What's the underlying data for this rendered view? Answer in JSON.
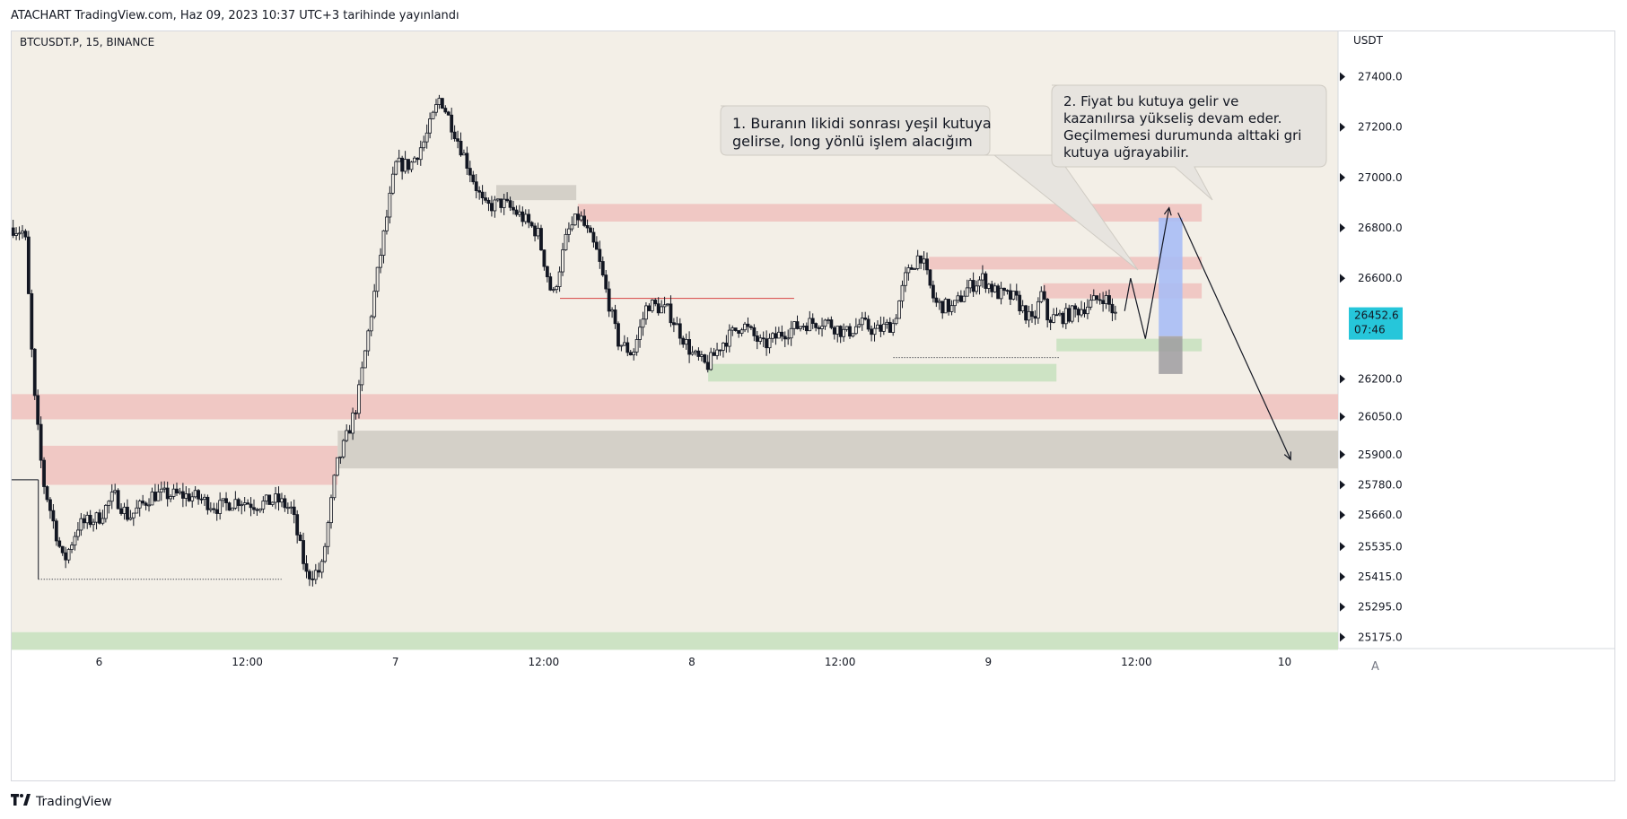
{
  "header": {
    "publication": "ATACHART TradingView.com, Haz 09, 2023 10:37 UTC+3 tarihinde yayınlandı"
  },
  "symbol_label": "BTCUSDT.P, 15, BINANCE",
  "currency": "USDT",
  "current_price": {
    "price": "26452.6",
    "countdown": "07:46"
  },
  "auto_scale_label": "A",
  "footer": {
    "brand": "TradingView"
  },
  "colors": {
    "background": "#f3efe7",
    "bull_candle": "#131722",
    "bear_candle": "#131722",
    "supply_zone": "#f0c8c4",
    "demand_zone": "#cde3c4",
    "neutral_zone": "#d4d0c8",
    "price_badge": "#26c6da",
    "arrow_target": "#a9bdf5"
  },
  "annotations": [
    {
      "id": "note-1",
      "lines": [
        "1. Buranın likidi sonrası yeşil kutuya",
        "gelirse, long yönlü işlem alacığım"
      ]
    },
    {
      "id": "note-2",
      "lines": [
        "2. Fiyat bu kutuya gelir ve",
        "kazanılırsa yükseliş devam eder.",
        "Geçilmemesi durumunda alttaki gri",
        "kutuya uğrayabilir."
      ]
    }
  ],
  "chart_data": {
    "type": "candlestick",
    "title": "BTCUSDT.P, 15, BINANCE",
    "y_axis_label": "USDT",
    "x_ticks": [
      {
        "label": "6",
        "day": 6.0
      },
      {
        "label": "12:00",
        "day": 6.5
      },
      {
        "label": "7",
        "day": 7.0
      },
      {
        "label": "12:00",
        "day": 7.5
      },
      {
        "label": "8",
        "day": 8.0
      },
      {
        "label": "12:00",
        "day": 8.5
      },
      {
        "label": "9",
        "day": 9.0
      },
      {
        "label": "12:00",
        "day": 9.5
      },
      {
        "label": "10",
        "day": 10.0
      }
    ],
    "y_ticks": [
      27400.0,
      27200.0,
      27000.0,
      26800.0,
      26600.0,
      26200.0,
      26050.0,
      25900.0,
      25780.0,
      25660.0,
      25535.0,
      25415.0,
      25295.0,
      25175.0
    ],
    "y_range": [
      25130,
      27580
    ],
    "x_range_days": [
      5.705,
      10.18
    ],
    "last_price": 26452.6,
    "price_path": [
      {
        "day": 5.71,
        "price": 26800
      },
      {
        "day": 5.75,
        "price": 26780
      },
      {
        "day": 5.78,
        "price": 26150
      },
      {
        "day": 5.81,
        "price": 25800
      },
      {
        "day": 5.88,
        "price": 25470
      },
      {
        "day": 5.93,
        "price": 25620
      },
      {
        "day": 6.0,
        "price": 25650
      },
      {
        "day": 6.05,
        "price": 25740
      },
      {
        "day": 6.1,
        "price": 25650
      },
      {
        "day": 6.18,
        "price": 25740
      },
      {
        "day": 6.27,
        "price": 25740
      },
      {
        "day": 6.33,
        "price": 25730
      },
      {
        "day": 6.4,
        "price": 25690
      },
      {
        "day": 6.47,
        "price": 25720
      },
      {
        "day": 6.53,
        "price": 25700
      },
      {
        "day": 6.6,
        "price": 25720
      },
      {
        "day": 6.65,
        "price": 25680
      },
      {
        "day": 6.7,
        "price": 25420
      },
      {
        "day": 6.75,
        "price": 25440
      },
      {
        "day": 6.8,
        "price": 25850
      },
      {
        "day": 6.83,
        "price": 25950
      },
      {
        "day": 6.87,
        "price": 26100
      },
      {
        "day": 6.95,
        "price": 26700
      },
      {
        "day": 7.0,
        "price": 27050
      },
      {
        "day": 7.05,
        "price": 27050
      },
      {
        "day": 7.1,
        "price": 27150
      },
      {
        "day": 7.15,
        "price": 27320
      },
      {
        "day": 7.2,
        "price": 27180
      },
      {
        "day": 7.25,
        "price": 27030
      },
      {
        "day": 7.3,
        "price": 26880
      },
      {
        "day": 7.36,
        "price": 26900
      },
      {
        "day": 7.42,
        "price": 26850
      },
      {
        "day": 7.48,
        "price": 26780
      },
      {
        "day": 7.53,
        "price": 26520
      },
      {
        "day": 7.58,
        "price": 26780
      },
      {
        "day": 7.62,
        "price": 26850
      },
      {
        "day": 7.68,
        "price": 26700
      },
      {
        "day": 7.75,
        "price": 26350
      },
      {
        "day": 7.8,
        "price": 26300
      },
      {
        "day": 7.85,
        "price": 26500
      },
      {
        "day": 7.92,
        "price": 26470
      },
      {
        "day": 8.0,
        "price": 26300
      },
      {
        "day": 8.05,
        "price": 26250
      },
      {
        "day": 8.1,
        "price": 26340
      },
      {
        "day": 8.17,
        "price": 26420
      },
      {
        "day": 8.24,
        "price": 26330
      },
      {
        "day": 8.3,
        "price": 26380
      },
      {
        "day": 8.38,
        "price": 26420
      },
      {
        "day": 8.45,
        "price": 26430
      },
      {
        "day": 8.52,
        "price": 26380
      },
      {
        "day": 8.57,
        "price": 26420
      },
      {
        "day": 8.62,
        "price": 26390
      },
      {
        "day": 8.68,
        "price": 26420
      },
      {
        "day": 8.72,
        "price": 26600
      },
      {
        "day": 8.77,
        "price": 26700
      },
      {
        "day": 8.82,
        "price": 26500
      },
      {
        "day": 8.88,
        "price": 26480
      },
      {
        "day": 8.93,
        "price": 26560
      },
      {
        "day": 8.98,
        "price": 26600
      },
      {
        "day": 9.03,
        "price": 26540
      },
      {
        "day": 9.09,
        "price": 26520
      },
      {
        "day": 9.15,
        "price": 26420
      },
      {
        "day": 9.18,
        "price": 26540
      },
      {
        "day": 9.2,
        "price": 26440
      },
      {
        "day": 9.26,
        "price": 26450
      },
      {
        "day": 9.33,
        "price": 26490
      },
      {
        "day": 9.39,
        "price": 26530
      },
      {
        "day": 9.43,
        "price": 26450
      }
    ],
    "zones": [
      {
        "kind": "supply",
        "day_start": 5.705,
        "day_end": 10.18,
        "price_top": 26140,
        "price_bottom": 26040
      },
      {
        "kind": "supply",
        "day_start": 5.805,
        "day_end": 6.805,
        "price_top": 25935,
        "price_bottom": 25780
      },
      {
        "kind": "neutral",
        "day_start": 6.805,
        "day_end": 10.18,
        "price_top": 25995,
        "price_bottom": 25845
      },
      {
        "kind": "demand",
        "day_start": 5.705,
        "day_end": 10.18,
        "price_top": 25195,
        "price_bottom": 25125
      },
      {
        "kind": "neutral",
        "day_start": 7.34,
        "day_end": 7.61,
        "price_top": 26970,
        "price_bottom": 26910
      },
      {
        "kind": "supply",
        "day_start": 7.615,
        "day_end": 9.72,
        "price_top": 26895,
        "price_bottom": 26825
      },
      {
        "kind": "supply",
        "day_start": 8.8,
        "day_end": 9.72,
        "price_top": 26685,
        "price_bottom": 26635
      },
      {
        "kind": "supply",
        "day_start": 9.185,
        "day_end": 9.72,
        "price_top": 26580,
        "price_bottom": 26520
      },
      {
        "kind": "demand",
        "day_start": 8.055,
        "day_end": 9.23,
        "price_top": 26260,
        "price_bottom": 26190
      },
      {
        "kind": "demand",
        "day_start": 9.23,
        "day_end": 9.72,
        "price_top": 26360,
        "price_bottom": 26310
      }
    ],
    "dotted_levels": [
      {
        "day_start": 5.795,
        "day_end": 6.615,
        "price": 25405
      },
      {
        "day_start": 8.68,
        "day_end": 9.24,
        "price": 26285
      }
    ],
    "red_level": {
      "day_start": 7.555,
      "day_end": 8.345,
      "price": 26520
    },
    "black_level": {
      "day_start": 5.705,
      "day_end": 5.795,
      "price": 25800
    },
    "projection_path": [
      {
        "day": 9.46,
        "price": 26470
      },
      {
        "day": 9.48,
        "price": 26600
      },
      {
        "day": 9.53,
        "price": 26360
      },
      {
        "day": 9.61,
        "price": 26880
      }
    ],
    "projection_arrow": [
      {
        "day": 9.64,
        "price": 26860
      },
      {
        "day": 10.02,
        "price": 25880
      }
    ],
    "target_boxes": [
      {
        "kind": "blue",
        "day_start": 9.575,
        "day_end": 9.655,
        "price_top": 26840,
        "price_bottom": 26370
      },
      {
        "kind": "gray",
        "day_start": 9.575,
        "day_end": 9.655,
        "price_top": 26370,
        "price_bottom": 26220
      }
    ]
  }
}
